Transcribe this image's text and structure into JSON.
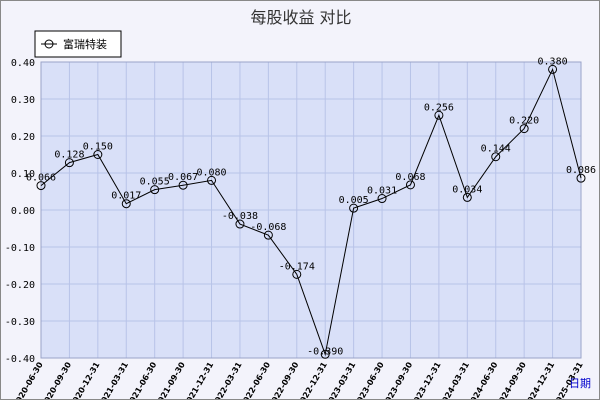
{
  "chart_data": {
    "type": "line",
    "title": "每股收益  对比",
    "xlabel": "日期",
    "ylim": [
      -0.4,
      0.4
    ],
    "yticks": [
      "0.40",
      "0.30",
      "0.20",
      "0.10",
      "0.00",
      "-0.10",
      "-0.20",
      "-0.30",
      "-0.40"
    ],
    "grid": true,
    "legend_position": "top-left",
    "colors": {
      "plot_bg": "#d9e0f8",
      "grid": "#b8c3e8",
      "line": "#000000"
    },
    "categories": [
      "2020-06-30",
      "2020-09-30",
      "2020-12-31",
      "2021-03-31",
      "2021-06-30",
      "2021-09-30",
      "2021-12-31",
      "2022-03-31",
      "2022-06-30",
      "2022-09-30",
      "2022-12-31",
      "2023-03-31",
      "2023-06-30",
      "2023-09-30",
      "2023-12-31",
      "2024-03-31",
      "2024-06-30",
      "2024-09-30",
      "2024-12-31",
      "2025-03-31"
    ],
    "series": [
      {
        "name": "富瑞特装",
        "values": [
          0.066,
          0.128,
          0.15,
          0.017,
          0.055,
          0.067,
          0.08,
          -0.038,
          -0.068,
          -0.174,
          -0.39,
          0.005,
          0.031,
          0.068,
          0.256,
          0.034,
          0.144,
          0.22,
          0.38,
          0.086
        ],
        "labels": [
          "0.066",
          "0.128",
          "0.150",
          "0.017",
          "0.055",
          "0.067",
          "0.080",
          "-0.038",
          "-0.068",
          "-0.174",
          "-0.390",
          "0.005",
          "0.031",
          "0.068",
          "0.256",
          "0.034",
          "0.144",
          "0.220",
          "0.380",
          "0.086"
        ]
      }
    ]
  }
}
